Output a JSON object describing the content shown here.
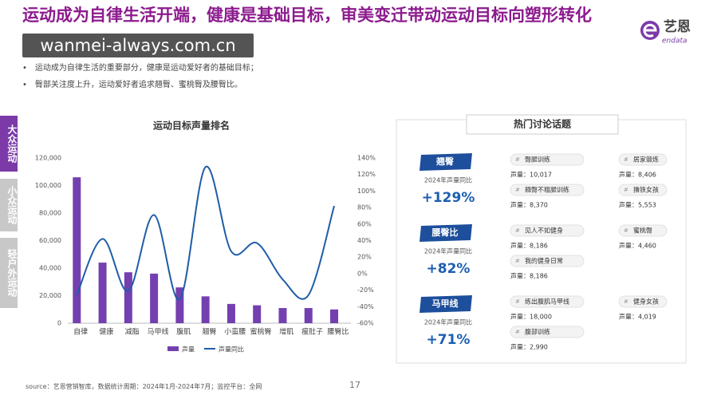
{
  "slide": {
    "title": "运动成为自律生活开端，健康是基础目标，审美变迁带动运动目标向塑形转化",
    "watermark": "wanmei-always.com.cn",
    "logo": {
      "name": "艺恩",
      "sub": "endata"
    },
    "bullets": [
      "运动成为自律生活的重要部分，健康是运动爱好者的基础目标；",
      "臀部关注度上升，运动爱好者追求翘臀、蜜桃臀及腰臀比。"
    ],
    "tabs": [
      "大众运动",
      "小众运动",
      "轻户外运动"
    ],
    "source": "source：艺恩营销智库，数据统计周期：2024年1月-2024年7月；监控平台：全网",
    "page": "17"
  },
  "chart_data": {
    "type": "bar",
    "title": "运动目标声量排名",
    "categories": [
      "自律",
      "健康",
      "减脂",
      "马甲线",
      "腹肌",
      "翘臀",
      "小蛮腰",
      "蜜桃臀",
      "增肌",
      "瘦肚子",
      "腰臀比"
    ],
    "series": [
      {
        "name": "声量",
        "type": "bar",
        "color": "#7440b0",
        "values": [
          106000,
          44000,
          37000,
          36000,
          26000,
          19500,
          14000,
          13000,
          11000,
          11000,
          10000
        ]
      },
      {
        "name": "声量同比",
        "type": "line",
        "axis": "y2",
        "color": "#1f5da6",
        "values": [
          -26,
          42,
          -21,
          71,
          -31,
          129,
          27,
          37,
          -7,
          -26,
          82
        ]
      }
    ],
    "ylim": [
      0,
      120000
    ],
    "yticks": [
      0,
      {
        "value": 20000,
        "label": "20,000"
      },
      {
        "value": 40000,
        "label": "40,000"
      },
      {
        "value": 60000,
        "label": "60,000"
      },
      {
        "value": 80000,
        "label": "80,000"
      },
      {
        "value": 100000,
        "label": "100,000"
      },
      {
        "value": 120000,
        "label": "120,000"
      }
    ],
    "y2lim": [
      -60,
      140
    ],
    "y2ticks": [
      {
        "value": -60,
        "label": "-60%"
      },
      {
        "value": -40,
        "label": "-40%"
      },
      {
        "value": -20,
        "label": "-20%"
      },
      {
        "value": 0,
        "label": "0%"
      },
      {
        "value": 20,
        "label": "20%"
      },
      {
        "value": 40,
        "label": "40%"
      },
      {
        "value": 60,
        "label": "60%"
      },
      {
        "value": 80,
        "label": "80%"
      },
      {
        "value": 100,
        "label": "100%"
      },
      {
        "value": 120,
        "label": "120%"
      },
      {
        "value": 140,
        "label": "140%"
      }
    ],
    "grid": false,
    "legend": "bottom"
  },
  "topics": {
    "title": "热门讨论话题",
    "groups": [
      {
        "tag": "翘臀",
        "yoy_label": "2024年声量同比",
        "yoy": "+129%",
        "columns": [
          [
            {
              "name": "臀腿训练",
              "volume": "声量：10,017"
            },
            {
              "name": "翘臀不粗腿训练",
              "volume": "声量：8,370"
            }
          ],
          [
            {
              "name": "居家锻炼",
              "volume": "声量：8,406"
            },
            {
              "name": "撸铁女孩",
              "volume": "声量：5,553"
            }
          ]
        ]
      },
      {
        "tag": "腰臀比",
        "yoy_label": "2024年声量同比",
        "yoy": "+82%",
        "columns": [
          [
            {
              "name": "见人不如健身",
              "volume": "声量：8,186"
            },
            {
              "name": "我的健身日常",
              "volume": "声量：8,186"
            }
          ],
          [
            {
              "name": "蜜桃臀",
              "volume": "声量：4,460"
            }
          ]
        ]
      },
      {
        "tag": "马甲线",
        "yoy_label": "2024年声量同比",
        "yoy": "+71%",
        "columns": [
          [
            {
              "name": "练出腹肌马甲线",
              "volume": "声量：18,000"
            },
            {
              "name": "腹部训练",
              "volume": "声量：2,990"
            }
          ],
          [
            {
              "name": "健身女孩",
              "volume": "声量：4,019"
            }
          ]
        ]
      }
    ]
  }
}
